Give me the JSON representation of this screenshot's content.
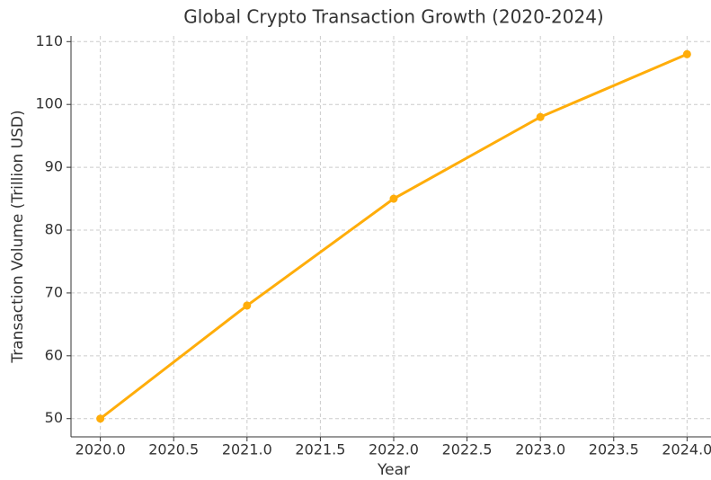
{
  "chart_data": {
    "type": "line",
    "title": "Global Crypto Transaction Growth (2020-2024)",
    "x_label": "Year",
    "y_label": "Transaction Volume (Trillion USD)",
    "x": [
      2020,
      2021,
      2022,
      2023,
      2024
    ],
    "series": [
      {
        "name": "Transaction Volume",
        "color": "#ffad0a",
        "values": [
          50,
          68,
          85,
          98,
          108
        ]
      }
    ],
    "xlim": [
      2019.8,
      2024.2
    ],
    "xticks": [
      {
        "value": 2020,
        "label": "2020.0"
      },
      {
        "value": 2020.5,
        "label": "2020.5"
      },
      {
        "value": 2021,
        "label": "2021.0"
      },
      {
        "value": 2021.5,
        "label": "2021.5"
      },
      {
        "value": 2022,
        "label": "2022.0"
      },
      {
        "value": 2022.5,
        "label": "2022.5"
      },
      {
        "value": 2023,
        "label": "2023.0"
      },
      {
        "value": 2023.5,
        "label": "2023.5"
      },
      {
        "value": 2024,
        "label": "2024.0"
      }
    ],
    "ylim": [
      47.1,
      110.9
    ],
    "yticks": [
      50,
      60,
      70,
      80,
      90,
      100,
      110
    ],
    "grid": true
  }
}
